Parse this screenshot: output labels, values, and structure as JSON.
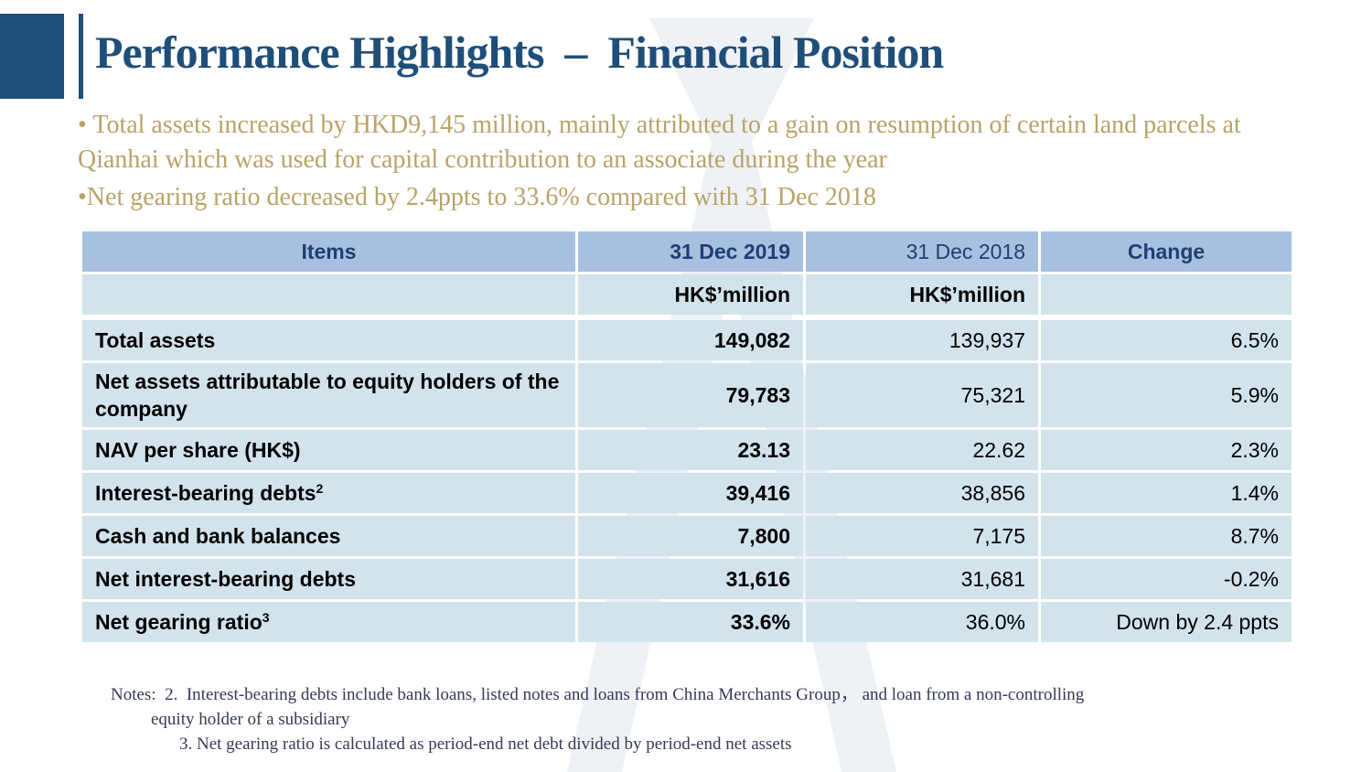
{
  "title": "Performance Highlights  –  Financial Position",
  "bullets": [
    "• Total assets increased by HKD9,145 million, mainly attributed to a gain on resumption of certain land parcels at Qianhai which was used for capital contribution to an associate during the year",
    "•Net gearing ratio decreased by 2.4ppts to 33.6% compared with 31 Dec 2018"
  ],
  "table": {
    "headers": [
      "Items",
      "31 Dec 2019",
      "31 Dec 2018",
      "Change"
    ],
    "units": [
      "",
      "HK$’million",
      "HK$’million",
      ""
    ],
    "rows": [
      {
        "label": "Total assets",
        "sup": "",
        "v2019": "149,082",
        "v2018": "139,937",
        "change": "6.5%"
      },
      {
        "label": "Net assets attributable to equity holders of the company",
        "sup": "",
        "v2019": "79,783",
        "v2018": "75,321",
        "change": "5.9%"
      },
      {
        "label": "NAV per share (HK$)",
        "sup": "",
        "v2019": "23.13",
        "v2018": "22.62",
        "change": "2.3%"
      },
      {
        "label": "Interest-bearing debts",
        "sup": "2",
        "v2019": "39,416",
        "v2018": "38,856",
        "change": "1.4%"
      },
      {
        "label": "Cash and bank balances",
        "sup": "",
        "v2019": "7,800",
        "v2018": "7,175",
        "change": "8.7%"
      },
      {
        "label": "Net interest-bearing debts",
        "sup": "",
        "v2019": "31,616",
        "v2018": "31,681",
        "change": "-0.2%"
      },
      {
        "label": "Net gearing ratio",
        "sup": "3",
        "v2019": "33.6%",
        "v2018": "36.0%",
        "change": "Down by 2.4 ppts"
      }
    ]
  },
  "notes": [
    "Notes:  2.  Interest-bearing debts include bank loans, listed notes and loans from China Merchants Group， and loan from a non-controlling",
    "equity holder of a subsidiary",
    "3. Net gearing ratio is calculated as period-end net debt divided by period-end net assets"
  ],
  "colors": {
    "brand": "#1f4e79",
    "bullet_text": "#b8a368",
    "header_fill": "#a8c0e0",
    "cell_fill": "#d2e3ec"
  }
}
